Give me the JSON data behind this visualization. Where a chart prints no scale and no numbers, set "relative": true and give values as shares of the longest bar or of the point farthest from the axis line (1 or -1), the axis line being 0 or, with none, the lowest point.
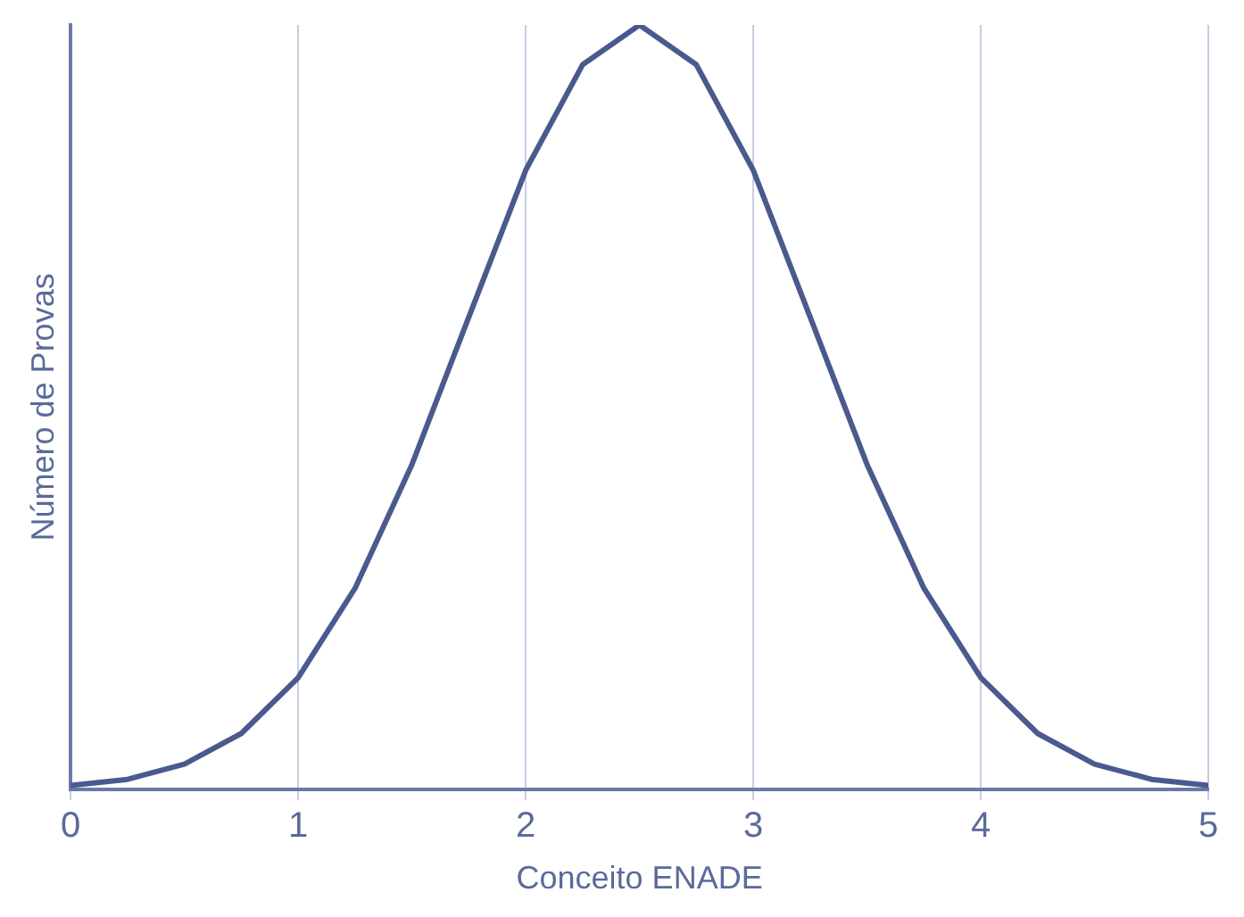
{
  "chart_data": {
    "type": "line",
    "xlabel": "Conceito ENADE",
    "ylabel": "Número de Provas",
    "relative": true,
    "grid": "x",
    "legend": false,
    "marker": "none",
    "line_style": "solid",
    "xlim": [
      0,
      5
    ],
    "xticks": [
      0,
      1,
      2,
      3,
      4,
      5
    ],
    "series": [
      {
        "color": "#4a5a8e",
        "x": [
          0,
          0.25,
          0.5,
          0.75,
          1,
          1.25,
          1.5,
          1.75,
          2,
          2.25,
          2.5,
          2.75,
          3,
          3.25,
          3.5,
          3.75,
          4,
          4.25,
          4.5,
          4.75,
          5
        ],
        "values": [
          0.005,
          0.013,
          0.033,
          0.073,
          0.146,
          0.263,
          0.425,
          0.618,
          0.81,
          0.948,
          1,
          0.948,
          0.81,
          0.618,
          0.425,
          0.263,
          0.146,
          0.073,
          0.033,
          0.013,
          0.005
        ]
      }
    ]
  }
}
